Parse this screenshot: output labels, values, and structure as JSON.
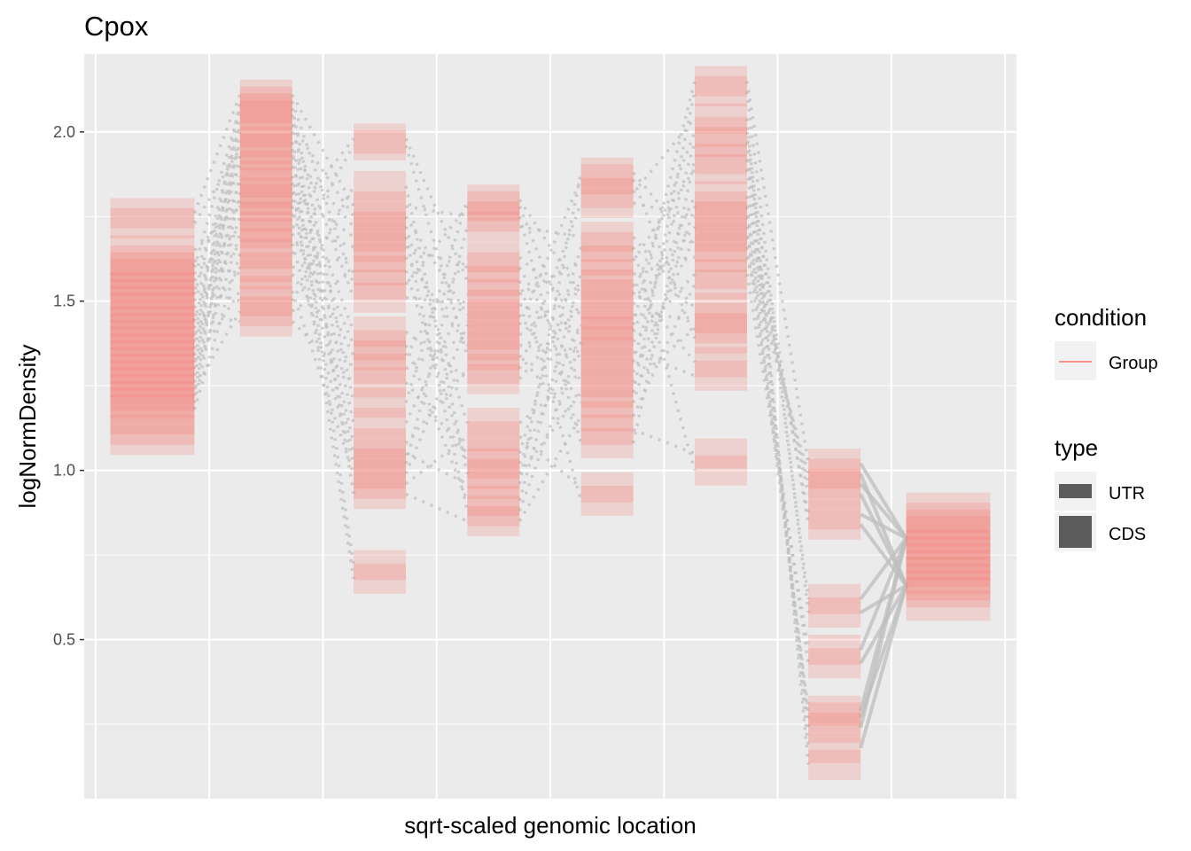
{
  "chart_data": {
    "type": "line",
    "title": "Cpox",
    "xlabel": "sqrt-scaled genomic location",
    "ylabel": "logNormDensity",
    "ylim": [
      0.03,
      2.23
    ],
    "y_ticks": [
      0.5,
      1.0,
      1.5,
      2.0
    ],
    "y_tick_labels": [
      "0.5",
      "1.0",
      "1.5",
      "2.0"
    ],
    "x_ticks_shown": false,
    "grid": true,
    "legend": {
      "placement": "right",
      "condition": {
        "title": "condition",
        "entries": [
          {
            "label": "Group",
            "color": "#f8766d"
          }
        ]
      },
      "type": {
        "title": "type",
        "entries": [
          {
            "label": "UTR"
          },
          {
            "label": "CDS"
          }
        ]
      }
    },
    "colors": {
      "segment": "#f8766d",
      "connector": "#bdbdbd",
      "panel": "#ebebeb",
      "grid": "#ffffff"
    },
    "segments": [
      {
        "type": "UTR",
        "x_center": 0.5,
        "values": [
          1.76,
          1.73,
          1.65,
          1.62,
          1.6,
          1.58,
          1.56,
          1.54,
          1.52,
          1.5,
          1.48,
          1.46,
          1.44,
          1.42,
          1.4,
          1.38,
          1.36,
          1.34,
          1.32,
          1.3,
          1.28,
          1.26,
          1.24,
          1.22,
          1.2,
          1.18,
          1.15,
          1.12,
          1.09
        ]
      },
      {
        "type": "CDS",
        "x_center": 1.5,
        "values": [
          2.11,
          2.09,
          2.07,
          2.05,
          2.02,
          2.0,
          1.97,
          1.95,
          1.93,
          1.9,
          1.87,
          1.85,
          1.82,
          1.8,
          1.78,
          1.75,
          1.72,
          1.7,
          1.67,
          1.64,
          1.6,
          1.58,
          1.53,
          1.5,
          1.47,
          1.44
        ]
      },
      {
        "type": "CDS",
        "x_center": 2.5,
        "values": [
          1.98,
          1.96,
          1.84,
          1.78,
          1.75,
          1.72,
          1.69,
          1.66,
          1.63,
          1.59,
          1.55,
          1.51,
          1.41,
          1.37,
          1.34,
          1.3,
          1.26,
          1.2,
          1.14,
          1.08,
          1.05,
          1.02,
          0.99,
          0.96,
          0.93,
          0.72,
          0.68
        ]
      },
      {
        "type": "CDS",
        "x_center": 3.5,
        "values": [
          1.8,
          1.78,
          1.75,
          1.72,
          1.63,
          1.6,
          1.56,
          1.52,
          1.49,
          1.46,
          1.43,
          1.4,
          1.37,
          1.34,
          1.3,
          1.27,
          1.14,
          1.1,
          1.05,
          1.02,
          0.99,
          0.96,
          0.91,
          0.88,
          0.85
        ]
      },
      {
        "type": "CDS",
        "x_center": 4.5,
        "values": [
          1.88,
          1.86,
          1.82,
          1.79,
          1.69,
          1.66,
          1.62,
          1.58,
          1.55,
          1.52,
          1.49,
          1.46,
          1.43,
          1.41,
          1.38,
          1.35,
          1.32,
          1.29,
          1.26,
          1.23,
          1.2,
          1.16,
          1.12,
          1.08,
          0.95,
          0.91
        ]
      },
      {
        "type": "CDS",
        "x_center": 5.5,
        "values": [
          2.15,
          2.12,
          2.04,
          2.0,
          1.97,
          1.92,
          1.89,
          1.81,
          1.78,
          1.75,
          1.72,
          1.69,
          1.66,
          1.63,
          1.58,
          1.55,
          1.48,
          1.45,
          1.42,
          1.39,
          1.32,
          1.28,
          1.05,
          1.0
        ]
      },
      {
        "type": "CDS",
        "x_center": 6.5,
        "values": [
          1.02,
          0.99,
          0.96,
          0.93,
          0.87,
          0.84,
          0.62,
          0.58,
          0.47,
          0.43,
          0.29,
          0.27,
          0.24,
          0.18,
          0.13
        ]
      },
      {
        "type": "UTR",
        "x_center": 7.5,
        "values": [
          0.89,
          0.86,
          0.84,
          0.82,
          0.8,
          0.78,
          0.76,
          0.74,
          0.72,
          0.7,
          0.68,
          0.66,
          0.64,
          0.6
        ]
      }
    ]
  }
}
